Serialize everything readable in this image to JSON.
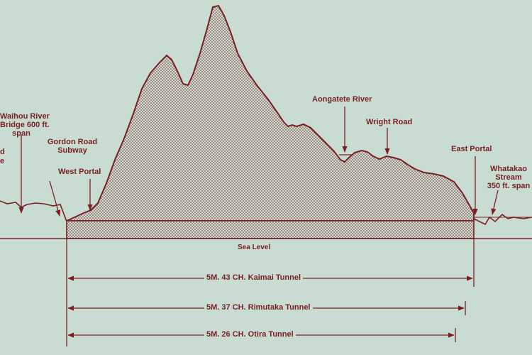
{
  "colors": {
    "ink": "#7a1f22",
    "paper": "#c9dcd1"
  },
  "labels": {
    "waihou_1": "Waihou River",
    "waihou_2": "Bridge 600 ft.",
    "waihou_3": "span",
    "gordon_1": "Gordon Road",
    "gordon_2": "Subway",
    "west_portal": "West Portal",
    "aongatete": "Aongatete River",
    "wright_road": "Wright Road",
    "east_portal": "East Portal",
    "whatakao_1": "Whatakao",
    "whatakao_2": "Stream",
    "whatakao_3": "350 ft. span",
    "edge_d": "d",
    "edge_e": "e",
    "sea_level": "Sea Level"
  },
  "dimensions": [
    {
      "text": "5M. 43 CH. Kaimai Tunnel"
    },
    {
      "text": "5M. 37 CH. Rimutaka Tunnel"
    },
    {
      "text": "5M. 26 CH. Otira Tunnel"
    }
  ]
}
